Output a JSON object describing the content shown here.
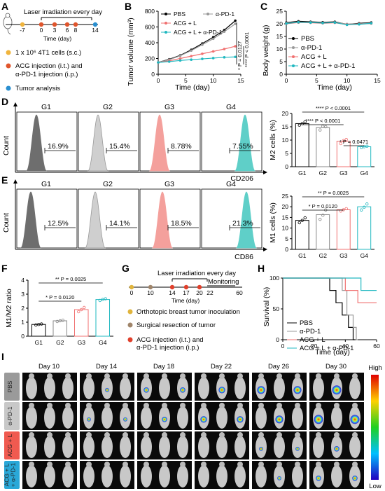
{
  "panels": {
    "A": {
      "letter": "A",
      "title": "Laser irradiation every day",
      "ticks": [
        "-7",
        "0",
        "3",
        "6",
        "8",
        "14"
      ],
      "xlabel": "Time (day)",
      "legend": [
        {
          "text": "1 x 10⁶ 4T1 cells (s.c.)",
          "color": "#f0b43c"
        },
        {
          "text": "ACG injection (i.t.) and",
          "color": "#e0552c"
        },
        {
          "text": "α-PD-1 injection (i.p.)",
          "color": ""
        },
        {
          "text": "Tumor analysis",
          "color": "#2a8fd0"
        }
      ]
    },
    "B": {
      "letter": "B",
      "ylabel": "Tumor volume (mm³)",
      "xlabel": "Time (day)",
      "stats": [
        "* P = 0.0127",
        "**** P < 0.0001"
      ]
    },
    "C": {
      "letter": "C",
      "ylabel": "Body weight (g)",
      "xlabel": "Time (day)"
    },
    "D": {
      "letter": "D",
      "ylabel": "Count",
      "xlabel": "CD206",
      "groups": [
        "G1",
        "G2",
        "G3",
        "G4"
      ],
      "pct": [
        "16.9%",
        "15.4%",
        "8.78%",
        "7.55%"
      ],
      "fills": [
        "#6e6e6e",
        "#cfcfcf",
        "#f4a09c",
        "#5fcfc8"
      ]
    },
    "E": {
      "letter": "E",
      "ylabel": "Count",
      "xlabel": "CD86",
      "groups": [
        "G1",
        "G2",
        "G3",
        "G4"
      ],
      "pct": [
        "12.5%",
        "14.1%",
        "18.5%",
        "21.3%"
      ],
      "fills": [
        "#6e6e6e",
        "#cfcfcf",
        "#f4a09c",
        "#5fcfc8"
      ]
    },
    "F": {
      "letter": "F",
      "ylabel": "M1/M2 ratio"
    },
    "G": {
      "letter": "G",
      "title": "Laser irradiation every day",
      "monitor": "Monitoring",
      "ticks": [
        "0",
        "10",
        "14",
        "17",
        "20",
        "22",
        "60"
      ],
      "xlabel": "Time (day)",
      "legend": [
        {
          "text": "Orthotopic breast tumor inoculation",
          "color": "#e0b43c"
        },
        {
          "text": "Surgical resection of tumor",
          "color": "#a0856a"
        },
        {
          "text": "ACG injection (i.t.) and",
          "color": "#e0402c"
        },
        {
          "text": "α-PD-1 injection (i.p.)",
          "color": ""
        }
      ]
    },
    "H": {
      "letter": "H",
      "ylabel": "Survival (%)",
      "xlabel": "Time (day)"
    },
    "I": {
      "letter": "I",
      "days": [
        "Day 10",
        "Day 14",
        "Day 18",
        "Day 22",
        "Day 26",
        "Day 30"
      ],
      "rows": [
        {
          "label": "PBS",
          "color": "#9a9a9a"
        },
        {
          "label": "α-PD-1",
          "color": "#c8c8c8"
        },
        {
          "label": "ACG + L",
          "color": "#f05a50"
        },
        {
          "label": "ACG + L\n+ α-PD-1",
          "color": "#2aa8d8"
        }
      ],
      "scale_high": "High",
      "scale_low": "Low"
    }
  },
  "series_legend": [
    "PBS",
    "α-PD-1",
    "ACG + L",
    "ACG + L + α-PD-1"
  ],
  "series_colors": [
    "#000000",
    "#999999",
    "#f07070",
    "#20b8c0"
  ],
  "chart_data": [
    {
      "panel": "B",
      "type": "line",
      "xlabel": "Time (day)",
      "ylabel": "Tumor volume (mm³)",
      "xlim": [
        0,
        15
      ],
      "ylim": [
        0,
        800
      ],
      "xticks": [
        0,
        5,
        10,
        15
      ],
      "yticks": [
        0,
        200,
        400,
        600,
        800
      ],
      "x": [
        0,
        2,
        4,
        6,
        8,
        10,
        12,
        14
      ],
      "series": [
        {
          "name": "PBS",
          "values": [
            150,
            190,
            240,
            310,
            390,
            470,
            560,
            680
          ]
        },
        {
          "name": "α-PD-1",
          "values": [
            150,
            185,
            235,
            300,
            375,
            450,
            540,
            640
          ]
        },
        {
          "name": "ACG + L",
          "values": [
            150,
            170,
            200,
            230,
            260,
            290,
            320,
            355
          ]
        },
        {
          "name": "ACG + L + α-PD-1",
          "values": [
            150,
            160,
            175,
            185,
            195,
            205,
            215,
            220
          ]
        }
      ]
    },
    {
      "panel": "C",
      "type": "line",
      "xlabel": "Time (day)",
      "ylabel": "Body weight (g)",
      "xlim": [
        0,
        15
      ],
      "ylim": [
        0,
        25
      ],
      "xticks": [
        0,
        5,
        10,
        15
      ],
      "yticks": [
        0,
        5,
        10,
        15,
        20,
        25
      ],
      "x": [
        0,
        2,
        4,
        6,
        8,
        10,
        12,
        14
      ],
      "series": [
        {
          "name": "PBS",
          "values": [
            20.5,
            21,
            20.8,
            20.6,
            20.8,
            19.8,
            20.2,
            20.5
          ]
        },
        {
          "name": "α-PD-1",
          "values": [
            20.3,
            20.7,
            20.6,
            20.4,
            20.6,
            19.9,
            20,
            20.3
          ]
        },
        {
          "name": "ACG + L",
          "values": [
            20,
            20.5,
            20.4,
            20.2,
            20.4,
            19.7,
            19.9,
            20.1
          ]
        },
        {
          "name": "ACG + L + α-PD-1",
          "values": [
            20.1,
            20.6,
            20.5,
            20.3,
            20.5,
            19.6,
            19.8,
            20.2
          ]
        }
      ]
    },
    {
      "panel": "D",
      "type": "bar",
      "categories": [
        "G1",
        "G2",
        "G3",
        "G4"
      ],
      "ylabel": "M2 cells (%)",
      "ylim": [
        0,
        20
      ],
      "yticks": [
        0,
        5,
        10,
        15,
        20
      ],
      "values": [
        16.2,
        14.7,
        9.6,
        7.5
      ],
      "points": [
        [
          15.6,
          16.2,
          16.9
        ],
        [
          13.8,
          15.2,
          15.0
        ],
        [
          8.7,
          9.8,
          10.2
        ],
        [
          7.2,
          7.5,
          7.7
        ]
      ],
      "annotations": [
        "**** P < 0.0001",
        "**** P < 0.0001",
        "* P = 0.0471"
      ]
    },
    {
      "panel": "E",
      "type": "bar",
      "categories": [
        "G1",
        "G2",
        "G3",
        "G4"
      ],
      "ylabel": "M1 cells (%)",
      "ylim": [
        0,
        25
      ],
      "yticks": [
        0,
        5,
        10,
        15,
        20,
        25
      ],
      "values": [
        13.6,
        16.3,
        18.6,
        20.0
      ],
      "points": [
        [
          12.5,
          13.6,
          14.8
        ],
        [
          14.1,
          16.0,
          18.5
        ],
        [
          18.0,
          18.6,
          19.1
        ],
        [
          18.5,
          19.8,
          21.3
        ]
      ],
      "annotations": [
        "** P = 0.0025",
        "* P = 0.0120"
      ]
    },
    {
      "panel": "F",
      "type": "bar",
      "categories": [
        "G1",
        "G2",
        "G3",
        "G4"
      ],
      "ylabel": "M1/M2 ratio",
      "ylim": [
        0,
        4
      ],
      "yticks": [
        0,
        1,
        2,
        3,
        4
      ],
      "values": [
        0.84,
        1.1,
        1.9,
        2.62
      ],
      "points": [
        [
          0.8,
          0.84,
          0.87
        ],
        [
          1.05,
          1.1,
          1.14
        ],
        [
          1.75,
          1.9,
          2.05
        ],
        [
          2.55,
          2.62,
          2.67
        ]
      ],
      "annotations": [
        "** P = 0.0025",
        "* P = 0.0120"
      ]
    },
    {
      "panel": "H",
      "type": "line",
      "xlabel": "Time (day)",
      "ylabel": "Survival (%)",
      "xlim": [
        0,
        60
      ],
      "ylim": [
        0,
        100
      ],
      "xticks": [
        0,
        20,
        40,
        60
      ],
      "yticks": [
        0,
        50,
        100
      ],
      "series": [
        {
          "name": "PBS",
          "steps": [
            [
              0,
              100
            ],
            [
              30,
              100
            ],
            [
              30,
              80
            ],
            [
              34,
              80
            ],
            [
              34,
              60
            ],
            [
              38,
              60
            ],
            [
              38,
              40
            ],
            [
              42,
              40
            ],
            [
              42,
              20
            ],
            [
              45,
              20
            ],
            [
              45,
              0
            ],
            [
              46,
              0
            ]
          ]
        },
        {
          "name": "α-PD-1",
          "steps": [
            [
              0,
              100
            ],
            [
              38,
              100
            ],
            [
              38,
              80
            ],
            [
              41,
              80
            ],
            [
              41,
              40
            ],
            [
              45,
              40
            ],
            [
              45,
              20
            ],
            [
              47,
              20
            ],
            [
              47,
              0
            ],
            [
              48,
              0
            ]
          ]
        },
        {
          "name": "ACG + L",
          "steps": [
            [
              0,
              100
            ],
            [
              40,
              100
            ],
            [
              40,
              80
            ],
            [
              48,
              80
            ],
            [
              48,
              60
            ],
            [
              60,
              60
            ]
          ]
        },
        {
          "name": "ACG + L + α-PD-1",
          "steps": [
            [
              0,
              100
            ],
            [
              50,
              100
            ],
            [
              50,
              80
            ],
            [
              60,
              80
            ]
          ]
        }
      ]
    }
  ]
}
